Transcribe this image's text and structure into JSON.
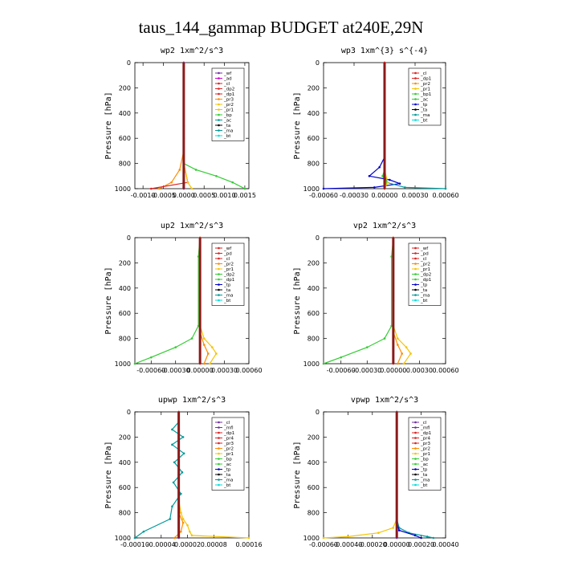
{
  "title": "taus_144_gammap  BUDGET at240E,29N",
  "colors": {
    "budget_line": "#8b1a1a",
    "purple": "#7030a0",
    "magenta": "#cc00cc",
    "red": "#dd2222",
    "orange": "#ff8c00",
    "yellow": "#f5c400",
    "green": "#33cc33",
    "blue": "#0000cc",
    "teal": "#009999",
    "black": "#000000",
    "cyan": "#00dddd"
  },
  "chart_data": [
    {
      "type": "line",
      "title": "wp2  1xm^2/s^3",
      "ylabel": "Pressure [hPa]",
      "xlim": [
        -0.0012,
        0.0016
      ],
      "ylim": [
        1000,
        0
      ],
      "xticks": [
        "-0.0010",
        "-0.0005",
        "0.0000",
        "0.0005",
        "0.0010",
        "0.0015"
      ],
      "xtick_values": [
        -0.001,
        -0.0005,
        0,
        0.0005,
        0.001,
        0.0015
      ],
      "yticks": [
        0,
        200,
        400,
        600,
        800,
        1000
      ],
      "legend": [
        "_wf",
        "_ad",
        "_cl",
        "_dp2",
        "_dp1",
        "_pr3",
        "_pr2",
        "_pr1",
        "_bp",
        "_ac",
        "_ta",
        "_ma",
        "_bt"
      ],
      "legend_colors": [
        "purple",
        "magenta",
        "red",
        "red",
        "red",
        "orange",
        "yellow",
        "yellow",
        "green",
        "teal",
        "black",
        "teal",
        "cyan"
      ],
      "series": [
        {
          "color": "green",
          "x": [
            0,
            0,
            0,
            0.0003,
            0.0008,
            0.0012,
            0.0015
          ],
          "p": [
            0,
            600,
            800,
            850,
            900,
            950,
            1000
          ]
        },
        {
          "color": "orange",
          "x": [
            0,
            0,
            -0.0001,
            -0.0003,
            -0.0006
          ],
          "p": [
            0,
            700,
            850,
            950,
            1000
          ]
        },
        {
          "color": "red",
          "x": [
            0,
            0,
            0.0001,
            -0.0008
          ],
          "p": [
            0,
            800,
            950,
            1000
          ]
        },
        {
          "color": "yellow",
          "x": [
            0,
            0,
            0.0001,
            0.0002
          ],
          "p": [
            0,
            800,
            950,
            1000
          ]
        },
        {
          "color": "purple",
          "x": [
            0,
            0,
            0
          ],
          "p": [
            0,
            500,
            1000
          ]
        }
      ]
    },
    {
      "type": "line",
      "title": "wp3  1xm^{3} s^{-4}",
      "ylabel": "Pressure [hPa]",
      "xlim": [
        -0.0006,
        0.0006
      ],
      "ylim": [
        1000,
        0
      ],
      "xticks": [
        "-0.00060",
        "-0.00030",
        "0.00000",
        "0.00030",
        "0.00060"
      ],
      "xtick_values": [
        -0.0006,
        -0.0003,
        0,
        0.0003,
        0.0006
      ],
      "yticks": [
        0,
        200,
        400,
        600,
        800,
        1000
      ],
      "legend": [
        "_cl",
        "_dp1",
        "_pr2",
        "_pr1",
        "_bp1",
        "_ac",
        "_tp",
        "_ta",
        "_ma",
        "_bt"
      ],
      "legend_colors": [
        "red",
        "red",
        "orange",
        "yellow",
        "green",
        "green",
        "blue",
        "black",
        "teal",
        "cyan"
      ],
      "series": [
        {
          "color": "blue",
          "x": [
            0,
            0,
            -5e-05,
            -0.00015,
            5e-05,
            0.00015,
            -0.0001,
            -0.0006
          ],
          "p": [
            0,
            750,
            830,
            900,
            930,
            960,
            990,
            1000
          ]
        },
        {
          "color": "teal",
          "x": [
            0,
            0,
            2e-05,
            0.0002,
            0.0006
          ],
          "p": [
            0,
            850,
            950,
            990,
            1000
          ]
        },
        {
          "color": "green",
          "x": [
            0,
            0,
            -2e-05,
            2e-05,
            0
          ],
          "p": [
            0,
            850,
            900,
            950,
            1000
          ]
        },
        {
          "color": "yellow",
          "x": [
            0,
            0,
            3e-05,
            0
          ],
          "p": [
            0,
            850,
            950,
            1000
          ]
        },
        {
          "color": "red",
          "x": [
            0,
            0,
            0
          ],
          "p": [
            0,
            500,
            1000
          ]
        }
      ]
    },
    {
      "type": "line",
      "title": "up2  1xm^2/s^3",
      "ylabel": "Pressure [hPa]",
      "xlim": [
        -0.0008,
        0.0006
      ],
      "ylim": [
        1000,
        0
      ],
      "xticks": [
        "-0.00060",
        "-0.00030",
        "0.00000",
        "0.00030",
        "0.00060"
      ],
      "xtick_values": [
        -0.0006,
        -0.0003,
        0,
        0.0003,
        0.0006
      ],
      "yticks": [
        0,
        200,
        400,
        600,
        800,
        1000
      ],
      "legend": [
        "_wf",
        "_pd",
        "_cl",
        "_pr2",
        "_pr1",
        "_dp2",
        "_dp1",
        "_tp",
        "_ta",
        "_ma",
        "_bt"
      ],
      "legend_colors": [
        "red",
        "red",
        "red",
        "orange",
        "yellow",
        "green",
        "green",
        "blue",
        "black",
        "teal",
        "cyan"
      ],
      "series": [
        {
          "color": "green",
          "x": [
            0,
            -2e-05,
            -2e-05,
            -0.0001,
            -0.0003,
            -0.0006,
            -0.0008
          ],
          "p": [
            0,
            150,
            700,
            800,
            870,
            950,
            1000
          ]
        },
        {
          "color": "yellow",
          "x": [
            0,
            0,
            5e-05,
            0.00015,
            0.0002,
            0.00012
          ],
          "p": [
            0,
            700,
            800,
            870,
            920,
            1000
          ]
        },
        {
          "color": "orange",
          "x": [
            0,
            0,
            5e-05,
            0.0001,
            5e-05
          ],
          "p": [
            0,
            750,
            850,
            920,
            1000
          ]
        },
        {
          "color": "red",
          "x": [
            0,
            0,
            0
          ],
          "p": [
            0,
            500,
            1000
          ]
        }
      ]
    },
    {
      "type": "line",
      "title": "vp2  1xm^2/s^3",
      "ylabel": "Pressure [hPa]",
      "xlim": [
        -0.0008,
        0.0006
      ],
      "ylim": [
        1000,
        0
      ],
      "xticks": [
        "-0.00060",
        "-0.00030",
        "0.00000",
        "0.00030",
        "0.00060"
      ],
      "xtick_values": [
        -0.0006,
        -0.0003,
        0,
        0.0003,
        0.0006
      ],
      "yticks": [
        0,
        200,
        400,
        600,
        800,
        1000
      ],
      "legend": [
        "_wf",
        "_pd",
        "_cl",
        "_pr2",
        "_pr1",
        "_dp2",
        "_dp1",
        "_tp",
        "_ta",
        "_ma",
        "_bt"
      ],
      "legend_colors": [
        "red",
        "red",
        "red",
        "orange",
        "yellow",
        "green",
        "green",
        "blue",
        "black",
        "teal",
        "cyan"
      ],
      "series": [
        {
          "color": "green",
          "x": [
            0,
            -2e-05,
            -2e-05,
            -0.0001,
            -0.0003,
            -0.0006,
            -0.0008
          ],
          "p": [
            0,
            150,
            700,
            800,
            870,
            950,
            1000
          ]
        },
        {
          "color": "yellow",
          "x": [
            0,
            0,
            5e-05,
            0.00015,
            0.0002,
            0.00012
          ],
          "p": [
            0,
            700,
            800,
            870,
            920,
            1000
          ]
        },
        {
          "color": "orange",
          "x": [
            0,
            0,
            5e-05,
            0.0001,
            5e-05
          ],
          "p": [
            0,
            750,
            850,
            920,
            1000
          ]
        },
        {
          "color": "red",
          "x": [
            0,
            0,
            0
          ],
          "p": [
            0,
            500,
            1000
          ]
        }
      ]
    },
    {
      "type": "line",
      "title": "upwp  1xm^2/s^3",
      "ylabel": "Pressure [hPa]",
      "xlim": [
        -0.0001,
        0.00016
      ],
      "ylim": [
        1000,
        0
      ],
      "xticks": [
        "-0.00010",
        "-0.00004",
        "0.00002",
        "0.00008",
        "0.00016"
      ],
      "xtick_values": [
        -0.0001,
        -4e-05,
        2e-05,
        8e-05,
        0.00016
      ],
      "yticks": [
        0,
        200,
        400,
        600,
        800,
        1000
      ],
      "legend": [
        "_cl",
        "_mfl",
        "_dp1",
        "_pr4",
        "_pr3",
        "_pr2",
        "_pr1",
        "_bp",
        "_ac",
        "_tp",
        "_ta",
        "_ma",
        "_bt"
      ],
      "legend_colors": [
        "purple",
        "purple",
        "red",
        "red",
        "red",
        "orange",
        "yellow",
        "green",
        "green",
        "blue",
        "black",
        "teal",
        "cyan"
      ],
      "series": [
        {
          "color": "teal",
          "x": [
            0,
            0,
            -1.5e-05,
            1e-05,
            -1.5e-05,
            1.2e-05,
            -1e-05,
            8e-06,
            -1.2e-05,
            5e-06,
            -1.5e-05,
            -2e-05,
            -8e-05,
            -0.0001
          ],
          "p": [
            0,
            80,
            140,
            200,
            260,
            330,
            400,
            480,
            560,
            650,
            750,
            850,
            950,
            1000
          ]
        },
        {
          "color": "yellow",
          "x": [
            0,
            0,
            5e-06,
            1e-05,
            2e-05,
            2.5e-05,
            3e-05,
            0.00016
          ],
          "p": [
            0,
            700,
            800,
            850,
            900,
            950,
            980,
            1000
          ]
        },
        {
          "color": "orange",
          "x": [
            0,
            0,
            1e-05,
            5e-06,
            -1e-05
          ],
          "p": [
            0,
            800,
            880,
            950,
            1000
          ]
        },
        {
          "color": "purple",
          "x": [
            0,
            0,
            0
          ],
          "p": [
            0,
            500,
            1000
          ]
        }
      ]
    },
    {
      "type": "line",
      "title": "vpwp  1xm^2/s^3",
      "ylabel": "Pressure [hPa]",
      "xlim": [
        -0.0006,
        0.0004
      ],
      "ylim": [
        1000,
        0
      ],
      "xticks": [
        "-0.00060",
        "-0.00040",
        "-0.00020",
        "0.00000",
        "0.00020",
        "0.00040"
      ],
      "xtick_values": [
        -0.0006,
        -0.0004,
        -0.0002,
        0,
        0.0002,
        0.0004
      ],
      "yticks": [
        0,
        200,
        400,
        600,
        800,
        1000
      ],
      "legend": [
        "_cl",
        "_mfl",
        "_dp1",
        "_pr4",
        "_pr3",
        "_pr2",
        "_pr1",
        "_bp",
        "_ac",
        "_tp",
        "_ta",
        "_ma",
        "_bt"
      ],
      "legend_colors": [
        "purple",
        "purple",
        "red",
        "red",
        "red",
        "orange",
        "yellow",
        "green",
        "green",
        "blue",
        "black",
        "teal",
        "cyan"
      ],
      "series": [
        {
          "color": "teal",
          "x": [
            0,
            0,
            2e-05,
            0.0001,
            0.00025,
            0.0003
          ],
          "p": [
            0,
            850,
            920,
            960,
            990,
            1000
          ]
        },
        {
          "color": "blue",
          "x": [
            0,
            0,
            2e-05,
            0.00015,
            0.0002
          ],
          "p": [
            0,
            880,
            940,
            980,
            1000
          ]
        },
        {
          "color": "yellow",
          "x": [
            0,
            0,
            -3e-05,
            -0.00015,
            -0.0004,
            -0.0006
          ],
          "p": [
            0,
            850,
            920,
            960,
            990,
            1000
          ]
        },
        {
          "color": "purple",
          "x": [
            0,
            0,
            0
          ],
          "p": [
            0,
            500,
            1000
          ]
        }
      ]
    }
  ]
}
